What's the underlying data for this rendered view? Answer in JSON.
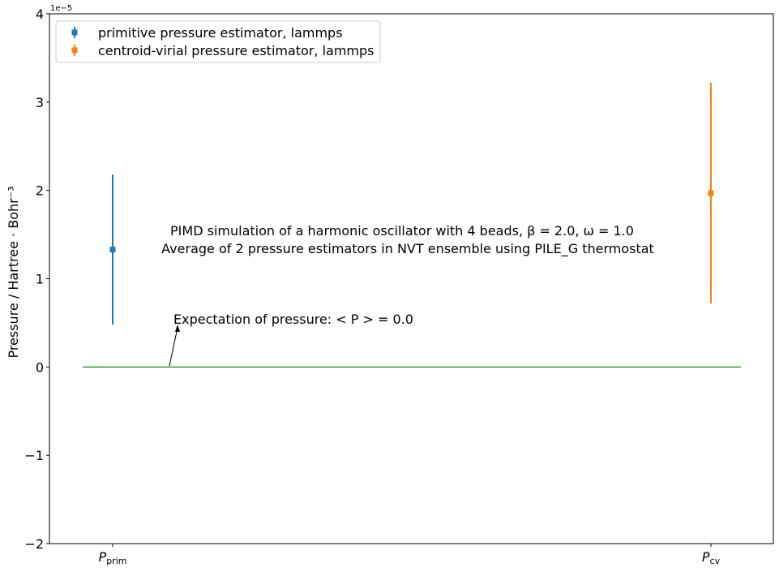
{
  "chart_data": {
    "type": "scatter",
    "categories": [
      "P_prim",
      "P_cv"
    ],
    "category_labels": [
      {
        "main": "P",
        "sub": "prim"
      },
      {
        "main": "P",
        "sub": "cv"
      }
    ],
    "series": [
      {
        "name": "primitive pressure estimator, lammps",
        "color": "#1f77b4",
        "category": 0,
        "value": 1.33e-05,
        "error": 8.5e-06
      },
      {
        "name": "centroid-virial pressure estimator, lammps",
        "color": "#ff7f0e",
        "category": 1,
        "value": 1.97e-05,
        "error": 1.25e-05
      }
    ],
    "reference_line": {
      "value": 0.0,
      "color": "#2ca02c"
    },
    "ylim": [
      -2e-05,
      4e-05
    ],
    "ytick_values": [
      -2,
      -1,
      0,
      1,
      2,
      3,
      4
    ],
    "ytick_labels": [
      "−2",
      "−1",
      "0",
      "1",
      "2",
      "3",
      "4"
    ],
    "y_offset_label": "1e−5",
    "ylabel": "Pressure / Hartree · Bohr⁻³",
    "annotation_line1": "PIMD simulation of a harmonic oscillator with 4 beads, β = 2.0, ω = 1.0",
    "annotation_line2": "Average of 2 pressure estimators in NVT ensemble using PILE_G thermostat",
    "expectation_text": "Expectation of pressure:  < P > = 0.0",
    "legend_position": "upper-left",
    "grid": false
  }
}
